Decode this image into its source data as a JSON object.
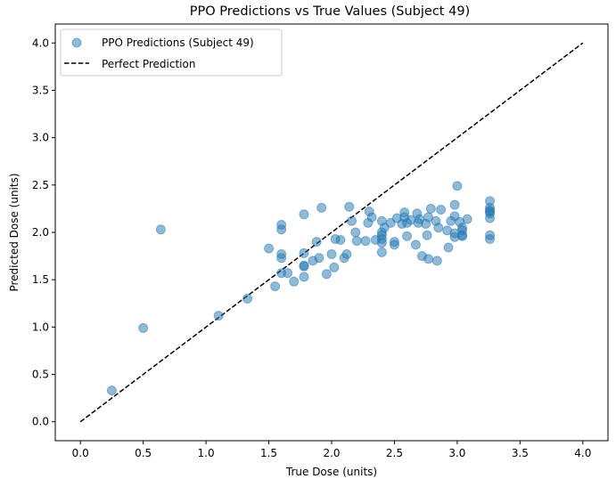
{
  "chart_data": {
    "type": "scatter",
    "title": "PPO Predictions vs True Values (Subject 49)",
    "xlabel": "True Dose (units)",
    "ylabel": "Predicted Dose (units)",
    "xlim": [
      -0.2,
      4.2
    ],
    "ylim": [
      -0.2,
      4.2
    ],
    "xticks": [
      "0.0",
      "0.5",
      "1.0",
      "1.5",
      "2.0",
      "2.5",
      "3.0",
      "3.5",
      "4.0"
    ],
    "yticks": [
      "0.0",
      "0.5",
      "1.0",
      "1.5",
      "2.0",
      "2.5",
      "3.0",
      "3.5",
      "4.0"
    ],
    "grid": false,
    "legend_position": "top-left",
    "series": [
      {
        "name": "PPO Predictions (Subject 49)",
        "kind": "scatter",
        "color": "#1f77b4",
        "opacity": 0.5,
        "points": [
          [
            0.25,
            0.33
          ],
          [
            0.5,
            0.99
          ],
          [
            0.64,
            2.03
          ],
          [
            1.1,
            1.12
          ],
          [
            1.33,
            1.3
          ],
          [
            1.5,
            1.83
          ],
          [
            1.55,
            1.43
          ],
          [
            1.6,
            2.08
          ],
          [
            1.6,
            2.03
          ],
          [
            1.6,
            1.77
          ],
          [
            1.6,
            1.73
          ],
          [
            1.6,
            1.57
          ],
          [
            1.65,
            1.57
          ],
          [
            1.7,
            1.48
          ],
          [
            1.78,
            2.19
          ],
          [
            1.78,
            1.78
          ],
          [
            1.78,
            1.65
          ],
          [
            1.78,
            1.64
          ],
          [
            1.78,
            1.53
          ],
          [
            1.85,
            1.7
          ],
          [
            1.88,
            1.9
          ],
          [
            1.9,
            1.73
          ],
          [
            1.92,
            2.26
          ],
          [
            1.96,
            1.56
          ],
          [
            2.0,
            1.77
          ],
          [
            2.02,
            1.63
          ],
          [
            2.03,
            1.93
          ],
          [
            2.07,
            1.92
          ],
          [
            2.1,
            1.73
          ],
          [
            2.12,
            1.77
          ],
          [
            2.14,
            2.27
          ],
          [
            2.16,
            2.12
          ],
          [
            2.19,
            2.0
          ],
          [
            2.2,
            1.91
          ],
          [
            2.27,
            1.91
          ],
          [
            2.29,
            2.1
          ],
          [
            2.3,
            2.22
          ],
          [
            2.32,
            2.16
          ],
          [
            2.35,
            1.92
          ],
          [
            2.4,
            2.12
          ],
          [
            2.4,
            2.0
          ],
          [
            2.4,
            1.97
          ],
          [
            2.4,
            1.93
          ],
          [
            2.4,
            1.89
          ],
          [
            2.4,
            1.79
          ],
          [
            2.42,
            2.05
          ],
          [
            2.47,
            2.1
          ],
          [
            2.5,
            1.9
          ],
          [
            2.5,
            1.87
          ],
          [
            2.52,
            2.15
          ],
          [
            2.56,
            2.09
          ],
          [
            2.58,
            2.21
          ],
          [
            2.58,
            2.16
          ],
          [
            2.6,
            1.96
          ],
          [
            2.6,
            2.1
          ],
          [
            2.63,
            2.13
          ],
          [
            2.67,
            1.87
          ],
          [
            2.68,
            2.2
          ],
          [
            2.69,
            2.1
          ],
          [
            2.7,
            2.14
          ],
          [
            2.72,
            1.75
          ],
          [
            2.75,
            2.09
          ],
          [
            2.76,
            1.97
          ],
          [
            2.77,
            2.16
          ],
          [
            2.77,
            1.72
          ],
          [
            2.79,
            2.25
          ],
          [
            2.83,
            2.12
          ],
          [
            2.84,
            1.7
          ],
          [
            2.85,
            2.05
          ],
          [
            2.87,
            2.24
          ],
          [
            2.92,
            2.02
          ],
          [
            2.93,
            1.84
          ],
          [
            2.95,
            2.12
          ],
          [
            2.98,
            2.29
          ],
          [
            2.98,
            2.17
          ],
          [
            2.98,
            1.95
          ],
          [
            2.98,
            1.99
          ],
          [
            3.0,
            2.49
          ],
          [
            3.02,
            2.11
          ],
          [
            3.04,
            2.05
          ],
          [
            3.04,
            2.02
          ],
          [
            3.04,
            1.97
          ],
          [
            3.04,
            1.96
          ],
          [
            3.08,
            2.14
          ],
          [
            3.26,
            2.33
          ],
          [
            3.26,
            2.26
          ],
          [
            3.26,
            2.23
          ],
          [
            3.26,
            2.22
          ],
          [
            3.26,
            2.2
          ],
          [
            3.26,
            2.15
          ],
          [
            3.26,
            1.97
          ],
          [
            3.26,
            1.93
          ]
        ]
      },
      {
        "name": "Perfect Prediction",
        "kind": "line",
        "color": "#000000",
        "dash": "dashed",
        "points": [
          [
            0.0,
            0.0
          ],
          [
            4.0,
            4.0
          ]
        ]
      }
    ]
  }
}
